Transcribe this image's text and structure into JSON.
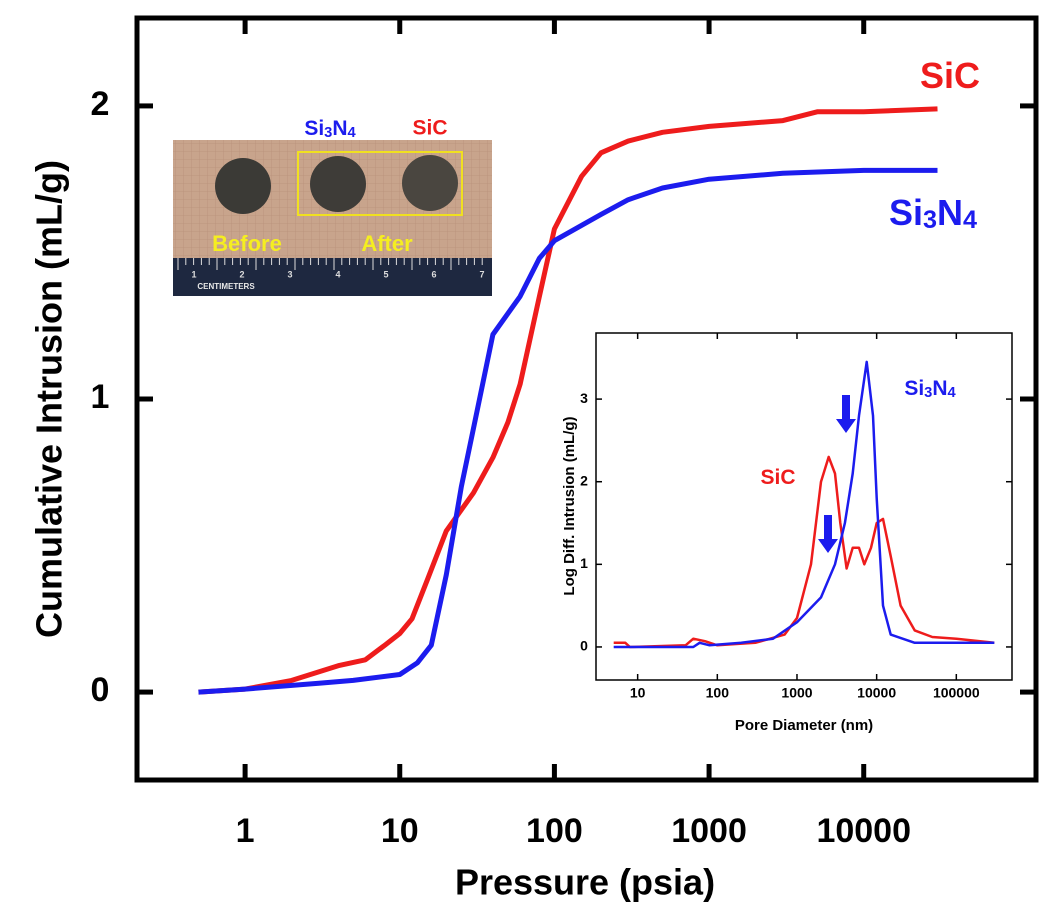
{
  "chart_data": [
    {
      "type": "line",
      "x_label": "Pressure (psia)",
      "y_label": "Cumulative Intrusion (mL/g)",
      "xscale": "log",
      "xlim": [
        0.2,
        130000
      ],
      "xticks": [
        1,
        10,
        100,
        1000,
        10000
      ],
      "ylim": [
        -0.3,
        2.3
      ],
      "yticks": [
        0,
        1,
        2
      ],
      "series": [
        {
          "name": "SiC",
          "color": "#ee1c1c",
          "x": [
            0.5,
            1,
            2,
            4,
            6,
            8,
            10,
            12,
            15,
            20,
            30,
            40,
            50,
            60,
            80,
            100,
            150,
            200,
            300,
            500,
            1000,
            3000,
            5000,
            10000,
            30000
          ],
          "values": [
            0,
            0.01,
            0.04,
            0.09,
            0.11,
            0.16,
            0.2,
            0.25,
            0.38,
            0.55,
            0.68,
            0.8,
            0.92,
            1.05,
            1.35,
            1.58,
            1.76,
            1.84,
            1.88,
            1.91,
            1.93,
            1.95,
            1.98,
            1.98,
            1.99
          ]
        },
        {
          "name": "Si3N4",
          "color": "#1c1cee",
          "x": [
            0.5,
            1,
            3,
            5,
            10,
            13,
            16,
            20,
            25,
            30,
            40,
            60,
            80,
            100,
            200,
            300,
            500,
            1000,
            3000,
            10000,
            30000
          ],
          "values": [
            0,
            0.01,
            0.03,
            0.04,
            0.06,
            0.1,
            0.16,
            0.4,
            0.7,
            0.9,
            1.22,
            1.35,
            1.48,
            1.54,
            1.63,
            1.68,
            1.72,
            1.75,
            1.77,
            1.78,
            1.78
          ]
        }
      ]
    },
    {
      "type": "line",
      "x_label": "Pore Diameter (nm)",
      "y_label": "Log Diff. Intrusion (mL/g)",
      "xscale": "log",
      "xlim": [
        3,
        500000
      ],
      "xticks": [
        10,
        100,
        1000,
        10000,
        100000
      ],
      "ylim": [
        -0.4,
        3.8
      ],
      "yticks": [
        0,
        1,
        2,
        3
      ],
      "series": [
        {
          "name": "SiC",
          "color": "#ee1c1c",
          "x": [
            5,
            7,
            8,
            40,
            50,
            70,
            100,
            300,
            700,
            1000,
            1500,
            2000,
            2500,
            3000,
            3500,
            4200,
            5000,
            6000,
            7000,
            8500,
            10000,
            12000,
            15000,
            20000,
            30000,
            50000,
            100000,
            300000
          ],
          "values": [
            0.05,
            0.05,
            0,
            0.02,
            0.1,
            0.07,
            0.02,
            0.05,
            0.15,
            0.35,
            1.0,
            2.0,
            2.3,
            2.1,
            1.5,
            0.95,
            1.2,
            1.2,
            1.0,
            1.2,
            1.5,
            1.55,
            1.1,
            0.5,
            0.2,
            0.12,
            0.1,
            0.05
          ]
        },
        {
          "name": "Si3N4",
          "color": "#1c1cee",
          "x": [
            5,
            10,
            50,
            60,
            80,
            200,
            500,
            1000,
            2000,
            3000,
            4000,
            5000,
            6000,
            7500,
            9000,
            10000,
            12000,
            15000,
            30000,
            100000,
            300000
          ],
          "values": [
            0,
            0,
            0,
            0.05,
            0.02,
            0.05,
            0.1,
            0.3,
            0.6,
            1.0,
            1.5,
            2.1,
            2.8,
            3.45,
            2.8,
            1.8,
            0.5,
            0.15,
            0.05,
            0.05,
            0.05
          ]
        }
      ]
    }
  ],
  "photo": {
    "sample_labels": [
      "Si3N4",
      "SiC"
    ],
    "before": "Before",
    "after": "After",
    "ruler_unit": "CENTIMETERS",
    "ruler_numbers": [
      "1",
      "2",
      "3",
      "4",
      "5",
      "6",
      "7"
    ]
  }
}
